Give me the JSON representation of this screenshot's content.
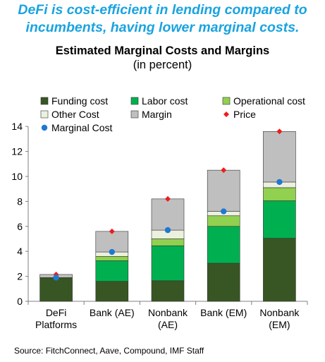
{
  "headline": [
    "DeFi is cost-efficient in lending compared to",
    "incumbents, having lower marginal costs."
  ],
  "source": "Source: FitchConnect, Aave, Compound, IMF Staff",
  "chart_data": {
    "type": "bar",
    "stacked": true,
    "title": "Estimated Marginal Costs and Margins",
    "subtitle": "(in percent)",
    "xlabel": "",
    "ylabel": "",
    "ylim": [
      0,
      14
    ],
    "yticks": [
      0,
      2,
      4,
      6,
      8,
      10,
      12,
      14
    ],
    "categories": [
      [
        "DeFi",
        "Platforms"
      ],
      [
        "Bank (AE)"
      ],
      [
        "Nonbank",
        "(AE)"
      ],
      [
        "Bank (EM)"
      ],
      [
        "Nonbank",
        "(EM)"
      ]
    ],
    "series": [
      {
        "name": "Funding cost",
        "color": "#375623",
        "values": [
          1.9,
          1.6,
          1.65,
          3.05,
          5.05
        ]
      },
      {
        "name": "Labor cost",
        "color": "#00b050",
        "values": [
          0.0,
          1.65,
          2.8,
          2.95,
          3.0
        ]
      },
      {
        "name": "Operational cost",
        "color": "#92d050",
        "values": [
          0.0,
          0.35,
          0.55,
          0.85,
          1.05
        ]
      },
      {
        "name": "Other Cost",
        "color": "#ebf1de",
        "values": [
          0.0,
          0.35,
          0.7,
          0.35,
          0.45
        ]
      },
      {
        "name": "Margin",
        "color": "#bfbfbf",
        "values": [
          0.25,
          1.65,
          2.5,
          3.3,
          4.05
        ]
      }
    ],
    "markers": [
      {
        "name": "Price",
        "color": "#ee1c1c",
        "shape": "diamond",
        "values": [
          2.15,
          5.6,
          8.2,
          10.5,
          13.6
        ]
      },
      {
        "name": "Marginal Cost",
        "color": "#1f78d1",
        "shape": "circle",
        "values": [
          1.9,
          3.95,
          5.7,
          7.2,
          9.55
        ]
      }
    ],
    "legend_order": [
      "Funding cost",
      "Labor cost",
      "Operational cost",
      "Other Cost",
      "Margin",
      "Price",
      "Marginal Cost"
    ],
    "legend_position": "top-left"
  }
}
